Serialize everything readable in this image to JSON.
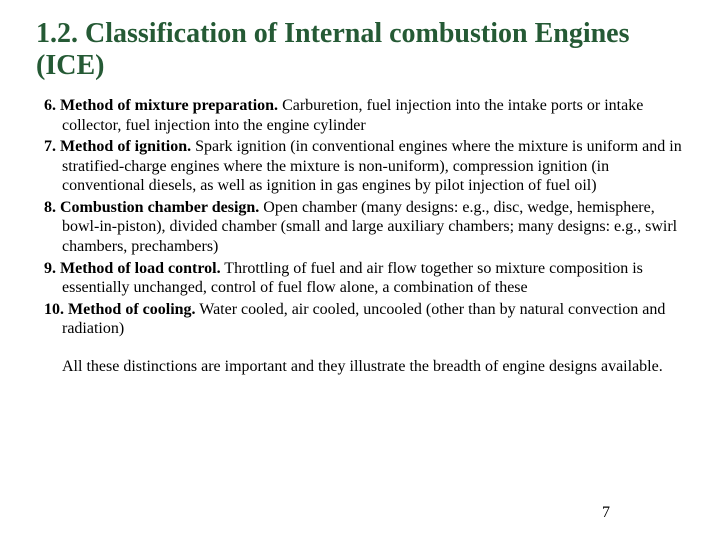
{
  "title": "1.2. Classification of Internal combustion Engines (ICE)",
  "items": [
    {
      "label": "6. Method of mixture preparation.",
      "body": " Carburetion, fuel injection into the intake ports or intake collector, fuel injection into the engine cylinder"
    },
    {
      "label": "7. Method of ignition.",
      "body": " Spark ignition (in conventional engines where the mixture is uniform and in stratified-charge engines where the mixture is non-uniform), compression ignition (in conventional diesels, as well as ignition in gas engines by pilot injection of fuel oil)"
    },
    {
      "label": "8. Combustion chamber design.",
      "body": " Open chamber (many designs: e.g., disc, wedge, hemisphere, bowl-in-piston), divided chamber (small and large auxiliary chambers; many designs: e.g., swirl chambers, prechambers)"
    },
    {
      "label": "9. Method of load control.",
      "body": " Throttling of fuel and air flow together so mixture composition is essentially unchanged, control of fuel flow alone, a combination of these"
    },
    {
      "label": "10. Method of cooling.",
      "body": " Water cooled, air cooled, uncooled (other than by natural convection and radiation)"
    }
  ],
  "closing": "All these distinctions are important and they illustrate the breadth of engine designs available.",
  "page_number": "7",
  "colors": {
    "title": "#255a35",
    "text": "#000000",
    "background": "#ffffff"
  },
  "typography": {
    "title_fontsize": 28,
    "body_fontsize": 16,
    "font_family": "Times New Roman"
  }
}
